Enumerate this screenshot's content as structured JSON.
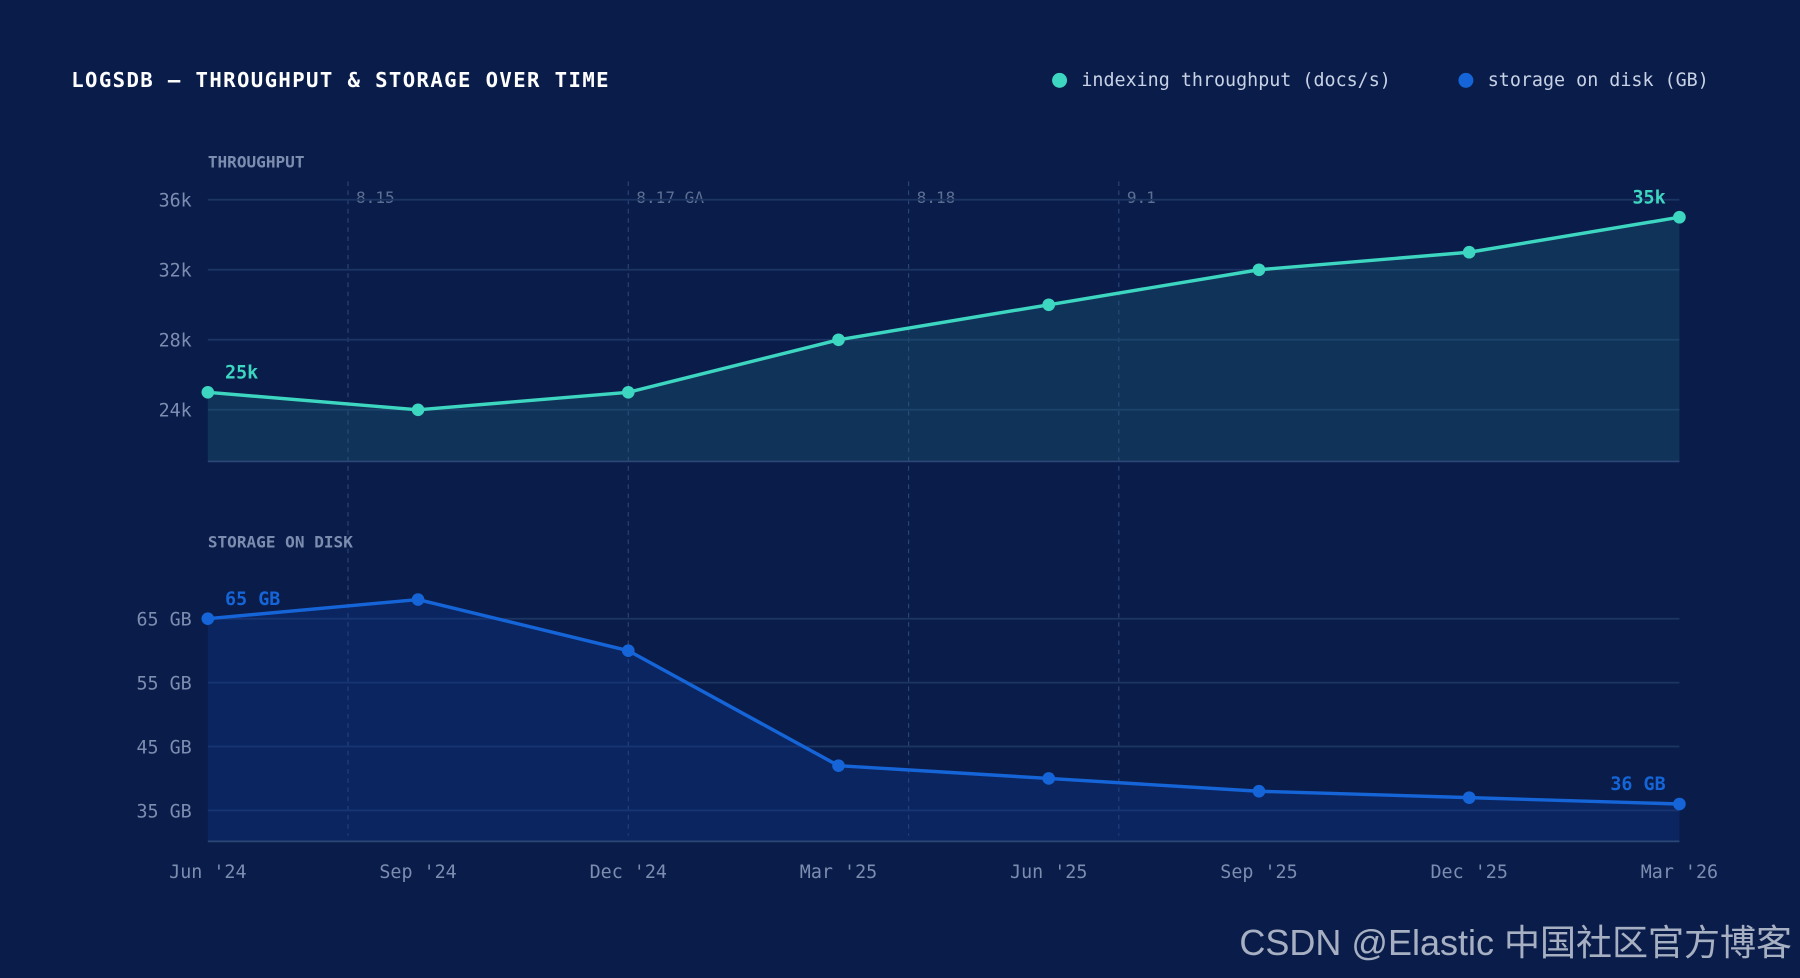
{
  "title": "LOGSDB — THROUGHPUT & STORAGE OVER TIME",
  "watermark": "CSDN @Elastic 中国社区官方博客",
  "colors": {
    "background": "#0a1d4a",
    "throughput": "#3dd6c0",
    "storage": "#1565d8",
    "grid": "#1c3563",
    "muted": "#6f7fa0"
  },
  "chart_data": {
    "type": "line",
    "legend": {
      "placement": "top-right",
      "entries": [
        "indexing throughput (docs/s)",
        "storage on disk (GB)"
      ]
    },
    "x": [
      "Jun '24",
      "Sep '24",
      "Dec '24",
      "Mar '25",
      "Jun '25",
      "Sep '25",
      "Dec '25",
      "Mar '26"
    ],
    "x_months": [
      0,
      3,
      6,
      9,
      12,
      15,
      18,
      21
    ],
    "releases": [
      {
        "label": "8.15",
        "month": 2
      },
      {
        "label": "8.17 GA",
        "month": 6
      },
      {
        "label": "8.18",
        "month": 10
      },
      {
        "label": "9.1",
        "month": 13
      }
    ],
    "panels": [
      {
        "name": "throughput",
        "label": "THROUGHPUT",
        "series": "indexing throughput (docs/s)",
        "unit": "docs/s",
        "values": [
          25000,
          24000,
          25000,
          28000,
          30000,
          32000,
          33000,
          35000
        ],
        "yticks": [
          {
            "v": 36000,
            "t": "36k"
          },
          {
            "v": 32000,
            "t": "32k"
          },
          {
            "v": 28000,
            "t": "28k"
          },
          {
            "v": 24000,
            "t": "24k"
          }
        ],
        "ylim": [
          21000,
          36000
        ],
        "annotations": [
          {
            "index": 0,
            "text": "25k"
          },
          {
            "index": 7,
            "text": "35k"
          }
        ]
      },
      {
        "name": "storage",
        "label": "STORAGE ON DISK",
        "series": "storage on disk (GB)",
        "unit": "GB",
        "values": [
          65,
          68,
          60,
          42,
          40,
          38,
          37,
          36
        ],
        "yticks": [
          {
            "v": 65,
            "t": "65 GB"
          },
          {
            "v": 55,
            "t": "55 GB"
          },
          {
            "v": 45,
            "t": "45 GB"
          },
          {
            "v": 35,
            "t": "35 GB"
          }
        ],
        "ylim": [
          30.2,
          68
        ],
        "annotations": [
          {
            "index": 0,
            "text": "65 GB"
          },
          {
            "index": 7,
            "text": "36 GB"
          }
        ]
      }
    ]
  }
}
